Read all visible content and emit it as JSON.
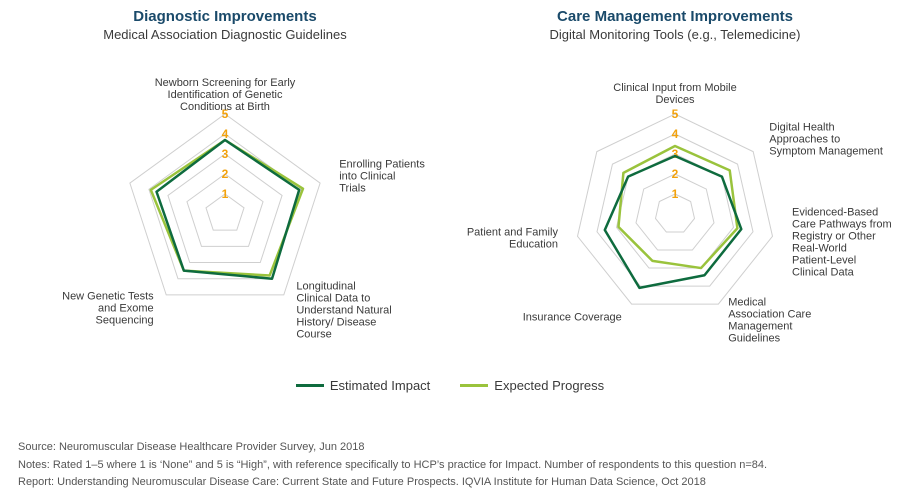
{
  "colors": {
    "impact": "#0e6b3e",
    "progress": "#9ac33c",
    "grid": "#cfcfcf",
    "tick": "#f2a20d",
    "label": "#3a3a3a",
    "title": "#1a4a6a",
    "bg": "#ffffff"
  },
  "scale": {
    "min": 0,
    "max": 5,
    "step": 1,
    "tick_fontsize": 12,
    "label_fontsize": 11,
    "grid_stroke": 1,
    "series_stroke": 2.5
  },
  "legend": {
    "impact": "Estimated Impact",
    "progress": "Expected Progress"
  },
  "left": {
    "title": "Diagnostic Improvements",
    "subtitle": "Medical Association Diagnostic Guidelines",
    "sides": 5,
    "axes": [
      "Newborn Screening for Early Identification of Genetic Conditions at Birth",
      "Enrolling Patients into Clinical Trials",
      "Longitudinal Clinical Data to Understand Natural History/ Disease Course",
      "New Genetic Tests and Exome Sequencing",
      ""
    ],
    "series": {
      "impact": [
        3.7,
        3.9,
        4.0,
        3.5,
        3.6
      ],
      "progress": [
        3.7,
        4.1,
        3.8,
        3.5,
        3.9
      ]
    }
  },
  "right": {
    "title": "Care Management Improvements",
    "subtitle": "Digital Monitoring Tools (e.g., Telemedicine)",
    "sides": 7,
    "axes": [
      "Clinical Input from Mobile Devices",
      "Digital Health Approaches to Symptom Management",
      "Evidenced-Based Care Pathways from Registry or Other Real-World Patient-Level Clinical Data",
      "Medical Association Care Management Guidelines",
      "Insurance Coverage",
      "Patient and Family Education",
      ""
    ],
    "series": {
      "impact": [
        2.9,
        3.0,
        3.4,
        3.4,
        4.1,
        3.6,
        3.0
      ],
      "progress": [
        3.4,
        3.5,
        3.2,
        3.0,
        2.6,
        2.9,
        3.3
      ]
    }
  },
  "footer": {
    "source": "Source: Neuromuscular Disease Healthcare Provider Survey, Jun 2018",
    "notes": "Notes: Rated 1–5 where 1 is ‘None” and 5 is “High”, with reference specifically to HCP’s practice for Impact. Number of respondents to this question n=84.",
    "report": "Report: Understanding Neuromuscular Disease Care: Current State and Future Prospects. IQVIA Institute for Human Data Science, Oct 2018"
  }
}
